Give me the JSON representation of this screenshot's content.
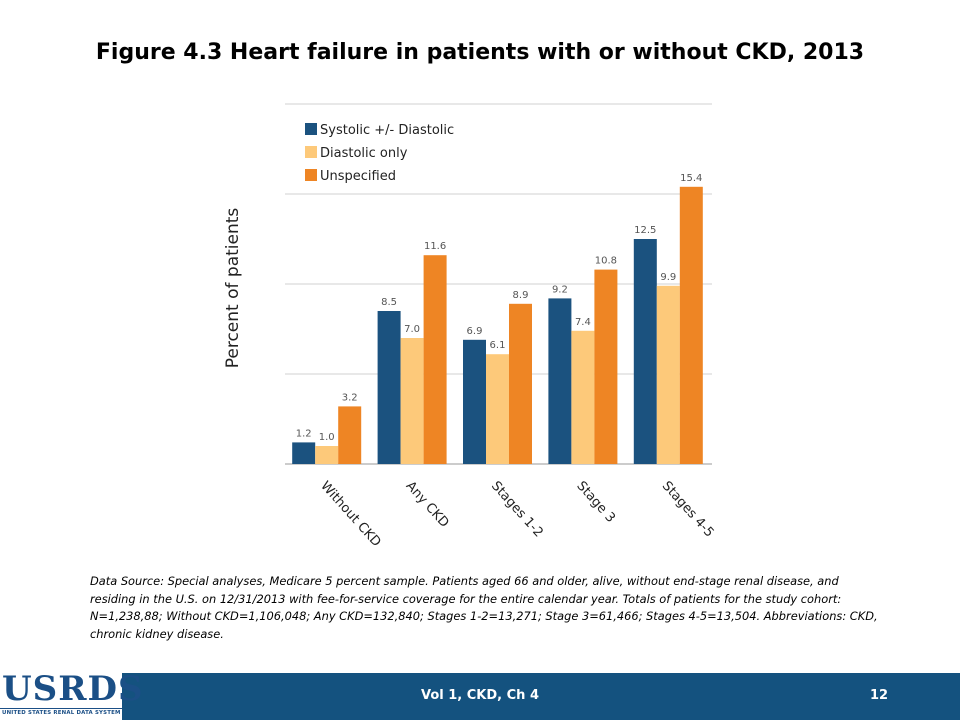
{
  "title": "Figure 4.3  Heart failure in patients with or without CKD, 2013",
  "chart_data": {
    "type": "bar",
    "categories": [
      "Without CKD",
      "Any CKD",
      "Stages 1-2",
      "Stage 3",
      "Stages 4-5"
    ],
    "series": [
      {
        "name": "Systolic +/- Diastolic",
        "values": [
          1.2,
          8.5,
          6.9,
          9.2,
          12.5
        ],
        "color": "#1b527f"
      },
      {
        "name": "Diastolic only",
        "values": [
          1.0,
          7.0,
          6.1,
          7.4,
          9.9
        ],
        "color": "#fdc97a"
      },
      {
        "name": "Unspecified",
        "values": [
          3.2,
          11.6,
          8.9,
          10.8,
          15.4
        ],
        "color": "#ee8524"
      }
    ],
    "value_labels": [
      [
        "1.2",
        "8.5",
        "6.9",
        "9.2",
        "12.5"
      ],
      [
        "1.0",
        "7.0",
        "6.1",
        "7.4",
        "9.9"
      ],
      [
        "3.2",
        "11.6",
        "8.9",
        "10.8",
        "15.4"
      ]
    ],
    "ylabel": "Percent of patients",
    "ylim": [
      0,
      20
    ],
    "y_gridlines": [
      0,
      5,
      10,
      15,
      20
    ],
    "y_tick_labels_shown": false,
    "grid": true,
    "legend_position": "top-left"
  },
  "source_note": "Data Source: Special analyses, Medicare 5 percent sample. Patients aged 66 and older, alive, without end-stage renal disease, and residing in the U.S. on 12/31/2013 with fee-for-service coverage for the entire calendar year. Totals of patients for the study cohort: N=1,238,88; Without CKD=1,106,048; Any CKD=132,840; Stages 1-2=13,271; Stage 3=61,466; Stages 4-5=13,504. Abbreviations: CKD, chronic kidney disease.",
  "footer": {
    "volume": "Vol 1, CKD, Ch 4",
    "page_number": "12",
    "color": "#14527f"
  },
  "logo": {
    "text": "USRDS",
    "subtitle": "UNITED STATES RENAL DATA SYSTEM"
  }
}
